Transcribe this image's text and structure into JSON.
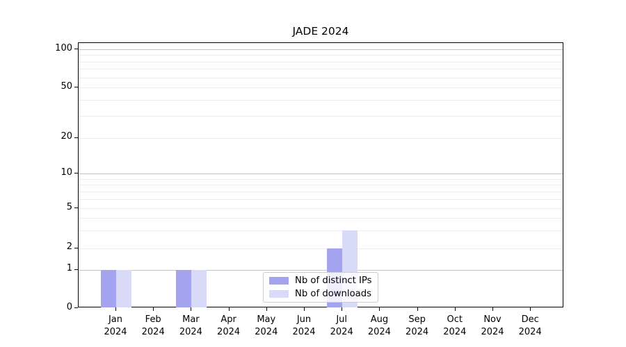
{
  "chart_data": {
    "type": "bar",
    "title": "JADE 2024",
    "xlabel": "",
    "ylabel": "",
    "y_scale": "symlog",
    "grid": true,
    "legend_position": "lower center",
    "ylim": [
      0,
      112
    ],
    "y_ticks": [
      {
        "label": "100",
        "value": 100
      },
      {
        "label": "50",
        "value": 50
      },
      {
        "label": "20",
        "value": 20
      },
      {
        "label": "10",
        "value": 10
      },
      {
        "label": "5",
        "value": 5
      },
      {
        "label": "2",
        "value": 2
      },
      {
        "label": "1",
        "value": 1
      },
      {
        "label": "0",
        "value": 0
      }
    ],
    "categories": [
      {
        "month": "Jan",
        "year": "2024"
      },
      {
        "month": "Feb",
        "year": "2024"
      },
      {
        "month": "Mar",
        "year": "2024"
      },
      {
        "month": "Apr",
        "year": "2024"
      },
      {
        "month": "May",
        "year": "2024"
      },
      {
        "month": "Jun",
        "year": "2024"
      },
      {
        "month": "Jul",
        "year": "2024"
      },
      {
        "month": "Aug",
        "year": "2024"
      },
      {
        "month": "Sep",
        "year": "2024"
      },
      {
        "month": "Oct",
        "year": "2024"
      },
      {
        "month": "Nov",
        "year": "2024"
      },
      {
        "month": "Dec",
        "year": "2024"
      }
    ],
    "series": [
      {
        "name": "Nb of distinct IPs",
        "color": "#a3a3f0",
        "values": [
          1,
          0,
          1,
          0,
          0,
          0,
          2,
          0,
          0,
          0,
          0,
          0
        ]
      },
      {
        "name": "Nb of downloads",
        "color": "#d9d9f8",
        "values": [
          1,
          0,
          1,
          0,
          0,
          0,
          3,
          0,
          0,
          0,
          0,
          0
        ]
      }
    ]
  }
}
